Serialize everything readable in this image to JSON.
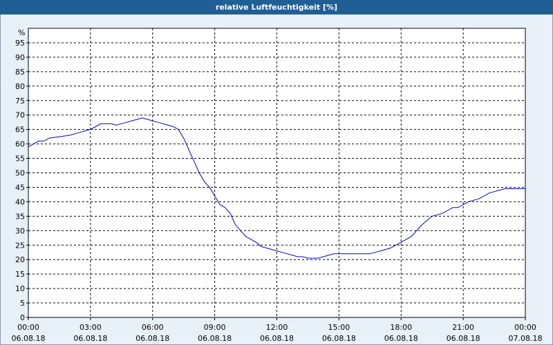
{
  "chart_data": {
    "type": "line",
    "title": "relative Luftfeuchtigkeit [%]",
    "ylabel": "%",
    "ylim": [
      0,
      100
    ],
    "yticks": [
      0,
      5,
      10,
      15,
      20,
      25,
      30,
      35,
      40,
      45,
      50,
      55,
      60,
      65,
      70,
      75,
      80,
      85,
      90,
      95
    ],
    "xlim": [
      0,
      24
    ],
    "xticks": [
      {
        "time": "00:00",
        "date": "06.08.18"
      },
      {
        "time": "03:00",
        "date": "06.08.18"
      },
      {
        "time": "06:00",
        "date": "06.08.18"
      },
      {
        "time": "09:00",
        "date": "06.08.18"
      },
      {
        "time": "12:00",
        "date": "06.08.18"
      },
      {
        "time": "15:00",
        "date": "06.08.18"
      },
      {
        "time": "18:00",
        "date": "06.08.18"
      },
      {
        "time": "21:00",
        "date": "06.08.18"
      },
      {
        "time": "00:00",
        "date": "07.08.18"
      }
    ],
    "grid": true,
    "line_color": "#0000cc",
    "series": [
      {
        "x": [
          0,
          0.25,
          0.5,
          0.75,
          1,
          1.5,
          2,
          2.5,
          3,
          3.25,
          3.5,
          4,
          4.25,
          4.5,
          4.75,
          5,
          5.25,
          5.5,
          5.75,
          6,
          6.25,
          6.5,
          6.75,
          7,
          7.25,
          7.5,
          7.75,
          8,
          8.25,
          8.5,
          8.75,
          9,
          9.25,
          9.5,
          9.75,
          10,
          10.25,
          10.5,
          10.75,
          11,
          11.25,
          11.5,
          11.75,
          12,
          12.25,
          12.5,
          12.75,
          13,
          13.25,
          13.5,
          13.75,
          14,
          14.25,
          14.5,
          14.75,
          15,
          15.25,
          15.5,
          15.75,
          16,
          16.25,
          16.5,
          16.75,
          17,
          17.5,
          18,
          18.5,
          19,
          19.5,
          20,
          20.25,
          20.5,
          20.75,
          21,
          21.25,
          21.5,
          21.75,
          22,
          22.25,
          22.5,
          22.75,
          23,
          23.25,
          23.5,
          23.75,
          24
        ],
        "y": [
          59,
          60,
          61,
          61,
          62,
          62.5,
          63,
          64,
          65,
          66,
          67,
          67,
          66.5,
          67,
          67.5,
          68,
          68.5,
          69,
          68.5,
          68,
          67.5,
          67,
          66.5,
          66,
          65,
          62,
          58,
          54,
          50,
          47,
          45,
          42,
          39,
          38,
          36,
          32,
          30,
          28,
          27,
          26,
          24.5,
          24,
          23.5,
          23,
          22.5,
          22,
          21.5,
          21,
          21,
          20.5,
          20.5,
          20.5,
          21,
          21.5,
          22,
          22,
          22,
          22,
          22,
          22,
          22,
          22,
          22.5,
          23,
          24,
          26,
          28,
          32,
          35,
          36,
          37,
          38,
          38,
          39,
          40,
          40.5,
          41,
          42,
          43,
          43.5,
          44,
          44.5,
          44.5,
          44.5,
          44.5,
          44.5
        ]
      }
    ]
  }
}
